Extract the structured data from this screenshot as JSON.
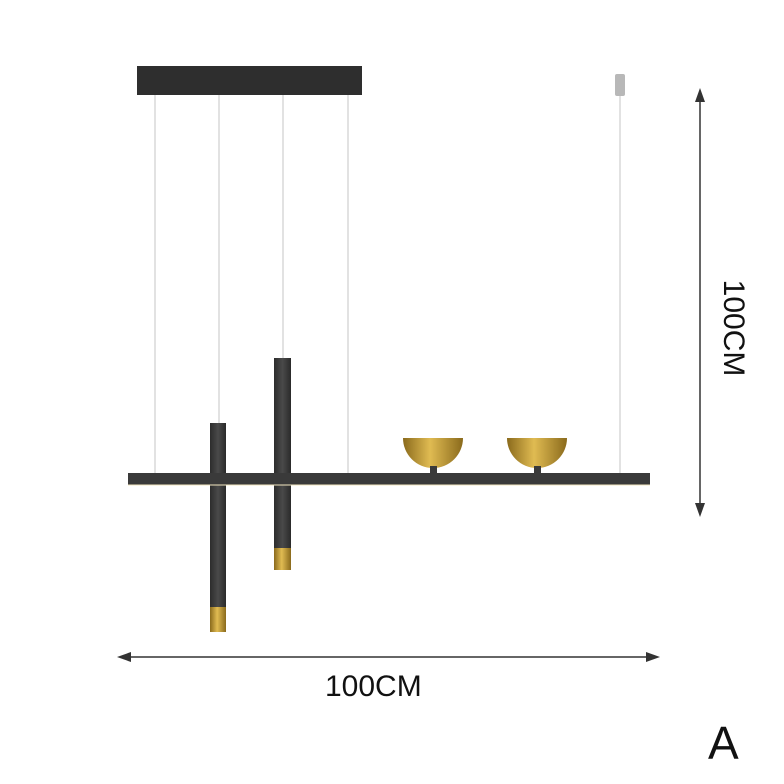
{
  "product": {
    "width_label": "100CM",
    "height_label": "100CM",
    "variant_label": "A"
  },
  "colors": {
    "metal": "#3a3a3a",
    "brass": "#c9a23a",
    "wire": "#bdbdbd"
  }
}
